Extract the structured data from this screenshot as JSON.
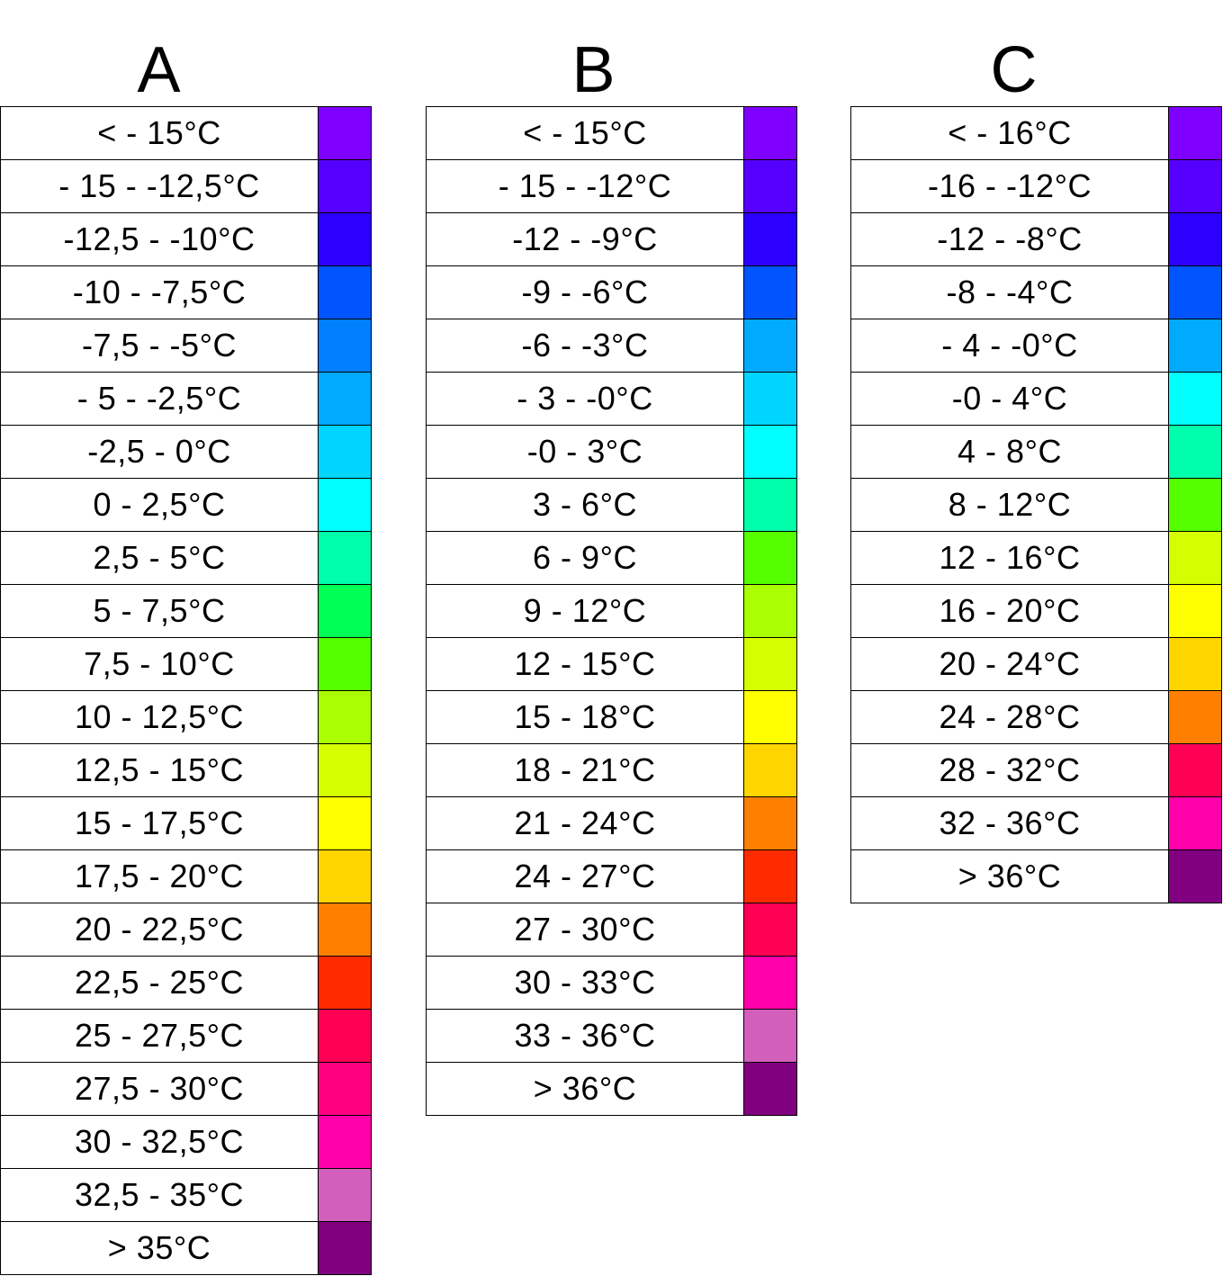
{
  "legends": [
    {
      "id": "a",
      "title": "A",
      "rows": [
        {
          "label": "< - 15°C",
          "color": "#8000ff"
        },
        {
          "label": "- 15 - -12,5°C",
          "color": "#5500ff"
        },
        {
          "label": "-12,5 - -10°C",
          "color": "#2b00ff"
        },
        {
          "label": "-10 - -7,5°C",
          "color": "#0055ff"
        },
        {
          "label": "-7,5 - -5°C",
          "color": "#0080ff"
        },
        {
          "label": "- 5 - -2,5°C",
          "color": "#00aaff"
        },
        {
          "label": "-2,5 - 0°C",
          "color": "#00d5ff"
        },
        {
          "label": "0 - 2,5°C",
          "color": "#00ffff"
        },
        {
          "label": "2,5 - 5°C",
          "color": "#00ffaa"
        },
        {
          "label": "5 - 7,5°C",
          "color": "#00ff55"
        },
        {
          "label": "7,5 - 10°C",
          "color": "#55ff00"
        },
        {
          "label": "10 - 12,5°C",
          "color": "#aaff00"
        },
        {
          "label": "12,5 - 15°C",
          "color": "#d5ff00"
        },
        {
          "label": "15 - 17,5°C",
          "color": "#ffff00"
        },
        {
          "label": "17,5 - 20°C",
          "color": "#ffd500"
        },
        {
          "label": "20 - 22,5°C",
          "color": "#ff8000"
        },
        {
          "label": "22,5 - 25°C",
          "color": "#ff2b00"
        },
        {
          "label": "25 - 27,5°C",
          "color": "#ff0055"
        },
        {
          "label": "27,5 - 30°C",
          "color": "#ff0080"
        },
        {
          "label": "30 - 32,5°C",
          "color": "#ff00aa"
        },
        {
          "label": "32,5 - 35°C",
          "color": "#d35fbc"
        },
        {
          "label": "> 35°C",
          "color": "#800080"
        }
      ]
    },
    {
      "id": "b",
      "title": "B",
      "rows": [
        {
          "label": "< - 15°C",
          "color": "#8000ff"
        },
        {
          "label": "- 15 - -12°C",
          "color": "#5500ff"
        },
        {
          "label": "-12 - -9°C",
          "color": "#2b00ff"
        },
        {
          "label": "-9 - -6°C",
          "color": "#0055ff"
        },
        {
          "label": "-6 - -3°C",
          "color": "#00aaff"
        },
        {
          "label": "- 3 - -0°C",
          "color": "#00d5ff"
        },
        {
          "label": "-0 - 3°C",
          "color": "#00ffff"
        },
        {
          "label": "3 - 6°C",
          "color": "#00ffaa"
        },
        {
          "label": "6 - 9°C",
          "color": "#55ff00"
        },
        {
          "label": "9 - 12°C",
          "color": "#aaff00"
        },
        {
          "label": "12 - 15°C",
          "color": "#d5ff00"
        },
        {
          "label": "15 - 18°C",
          "color": "#ffff00"
        },
        {
          "label": "18 - 21°C",
          "color": "#ffd500"
        },
        {
          "label": "21 - 24°C",
          "color": "#ff8000"
        },
        {
          "label": "24 - 27°C",
          "color": "#ff2b00"
        },
        {
          "label": "27 - 30°C",
          "color": "#ff0055"
        },
        {
          "label": "30 - 33°C",
          "color": "#ff00aa"
        },
        {
          "label": "33 - 36°C",
          "color": "#d35fbc"
        },
        {
          "label": "> 36°C",
          "color": "#800080"
        }
      ]
    },
    {
      "id": "c",
      "title": "C",
      "rows": [
        {
          "label": "< - 16°C",
          "color": "#8000ff"
        },
        {
          "label": "-16 - -12°C",
          "color": "#5500ff"
        },
        {
          "label": "-12 - -8°C",
          "color": "#2b00ff"
        },
        {
          "label": "-8 - -4°C",
          "color": "#0055ff"
        },
        {
          "label": "- 4 - -0°C",
          "color": "#00aaff"
        },
        {
          "label": "-0 - 4°C",
          "color": "#00ffff"
        },
        {
          "label": "4 - 8°C",
          "color": "#00ffaa"
        },
        {
          "label": "8 - 12°C",
          "color": "#55ff00"
        },
        {
          "label": "12 - 16°C",
          "color": "#d5ff00"
        },
        {
          "label": "16 - 20°C",
          "color": "#ffff00"
        },
        {
          "label": "20 - 24°C",
          "color": "#ffd500"
        },
        {
          "label": "24 - 28°C",
          "color": "#ff8000"
        },
        {
          "label": "28 - 32°C",
          "color": "#ff0055"
        },
        {
          "label": "32 - 36°C",
          "color": "#ff00aa"
        },
        {
          "label": "> 36°C",
          "color": "#800080"
        }
      ]
    }
  ]
}
